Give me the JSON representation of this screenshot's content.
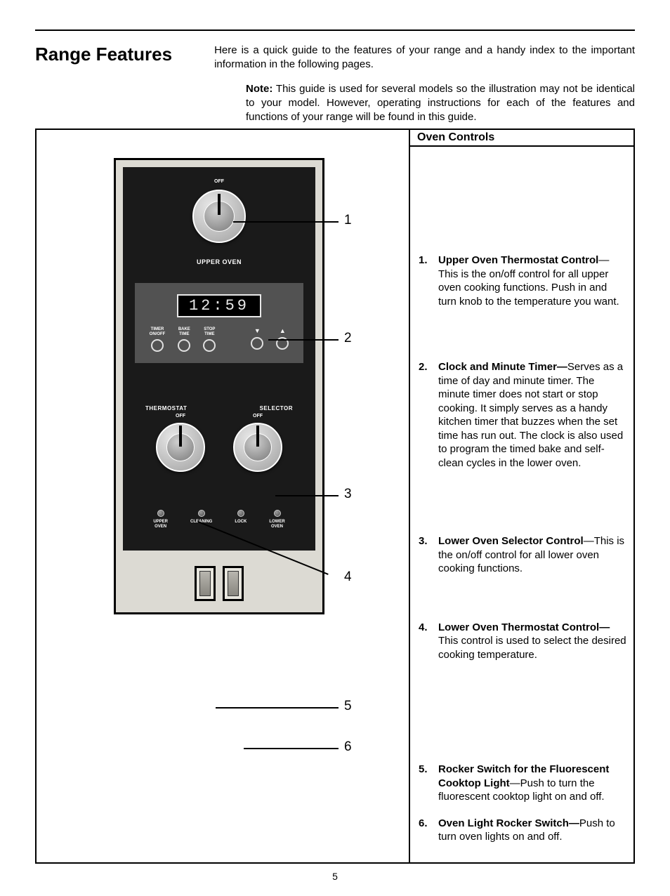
{
  "page_number": "5",
  "title": "Range Features",
  "intro": "Here is a quick guide to the features of your range and a handy index to the important information in the following pages.",
  "note_label": "Note:",
  "note_body": " This guide is used for several models so the illustration may not be identical to your model. However, operating instructions for each of the features and functions of your range will be found in this guide.",
  "right_header": "Oven Controls",
  "device": {
    "upper_label": "UPPER OVEN",
    "clock_time": "12:59",
    "knob_off": "OFF",
    "buttons": {
      "timer": "TIMER\nON/OFF",
      "bake": "BAKE\nTIME",
      "stop": "STOP\nTIME",
      "down": "▼",
      "up": "▲"
    },
    "selector_left": "THERMOSTAT",
    "selector_right": "SELECTOR",
    "indicators": {
      "upper": "UPPER\nOVEN",
      "cleaning": "CLEANING",
      "lock": "LOCK",
      "lower": "LOWER\nOVEN"
    }
  },
  "callouts": {
    "1": "1",
    "2": "2",
    "3": "3",
    "4": "4",
    "5": "5",
    "6": "6"
  },
  "items": [
    {
      "num": "1.",
      "bold": "Upper Oven Thermostat Control",
      "dash": "—",
      "rest": "This is the on/off control for all upper oven cooking functions. Push in and turn knob to the temperature you want.",
      "spacer": "sp-top-1"
    },
    {
      "num": "2.",
      "bold": "Clock and Minute Timer—",
      "dash": "",
      "rest": "Serves as a time of day and minute timer. The minute timer does not start or stop cooking. It simply serves as a handy kitchen timer that buzzes when the set time has run out. The clock is also used to program the timed bake and self-clean cycles in the lower oven.",
      "spacer": "sp-top-2"
    },
    {
      "num": "3.",
      "bold": "Lower Oven Selector Control",
      "dash": "—",
      "rest": "This is the on/off control for all lower oven cooking functions.",
      "spacer": "sp-top-3"
    },
    {
      "num": "4.",
      "bold": "Lower Oven Thermostat Control—",
      "dash": "",
      "rest": "This control is used to select the desired cooking temperature.",
      "spacer": "sp-top-4"
    },
    {
      "num": "5.",
      "bold": "Rocker Switch for the Fluorescent Cooktop Light",
      "dash": "—",
      "rest": "Push to turn the fluorescent cooktop light on and off.",
      "spacer": "sp-top-5"
    },
    {
      "num": "6.",
      "bold": "Oven Light Rocker Switch—",
      "dash": "",
      "rest": "Push to turn oven lights on and off.",
      "spacer": "sp-top-6"
    }
  ]
}
